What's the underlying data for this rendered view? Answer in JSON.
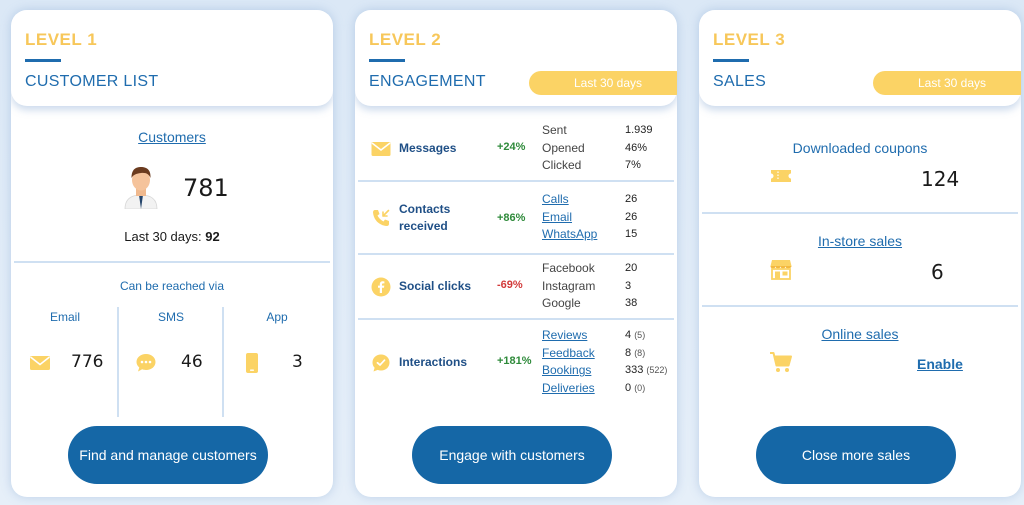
{
  "card1": {
    "level": "LEVEL 1",
    "title": "CUSTOMER LIST",
    "customers_link": "Customers",
    "customer_count": "781",
    "last_label": "Last 30 days:",
    "last_value": "92",
    "reach_label": "Can be reached via",
    "channels": [
      {
        "label": "Email",
        "icon": "envelope-icon",
        "value": "776"
      },
      {
        "label": "SMS",
        "icon": "chat-bubble-icon",
        "value": "46"
      },
      {
        "label": "App",
        "icon": "phone-icon",
        "value": "3"
      }
    ],
    "cta": "Find and manage customers"
  },
  "card2": {
    "level": "LEVEL 2",
    "title": "ENGAGEMENT",
    "period": "Last 30 days",
    "rows": [
      {
        "label": "Messages",
        "icon": "envelope-icon",
        "pct": "+24%",
        "metrics": [
          {
            "name": "Sent",
            "value": "1.939"
          },
          {
            "name": "Opened",
            "value": "46%"
          },
          {
            "name": "Clicked",
            "value": "7%"
          }
        ]
      },
      {
        "label": "Contacts received",
        "icon": "incoming-call-icon",
        "pct": "+86%",
        "metrics": [
          {
            "name": "Calls",
            "value": "26"
          },
          {
            "name": "Email",
            "value": "26"
          },
          {
            "name": "WhatsApp",
            "value": "15"
          }
        ]
      },
      {
        "label": "Social clicks",
        "icon": "facebook-icon",
        "pct": "-69%",
        "metrics": [
          {
            "name": "Facebook",
            "value": "20"
          },
          {
            "name": "Instagram",
            "value": "3"
          },
          {
            "name": "Google",
            "value": "38"
          }
        ]
      },
      {
        "label": "Interactions",
        "icon": "chat-dots-icon",
        "pct": "+181%",
        "metrics": [
          {
            "name": "Reviews",
            "value": "4",
            "extra": "(5)"
          },
          {
            "name": "Feedback",
            "value": "8",
            "extra": "(8)"
          },
          {
            "name": "Bookings",
            "value": "333",
            "extra": "(522)"
          },
          {
            "name": "Deliveries",
            "value": "0",
            "extra": "(0)"
          }
        ]
      }
    ],
    "cta": "Engage with customers"
  },
  "card3": {
    "level": "LEVEL 3",
    "title": "SALES",
    "period": "Last 30 days",
    "sections": [
      {
        "title": "Downloaded coupons",
        "icon": "ticket-icon",
        "value": "124"
      },
      {
        "title": "In-store sales",
        "icon": "store-icon",
        "value": "6"
      },
      {
        "title": "Online sales",
        "icon": "cart-icon",
        "value": "Enable"
      }
    ],
    "cta": "Close more sales"
  },
  "colors": {
    "accent_yellow": "#f7c75a",
    "primary_blue": "#1567a6",
    "positive": "#2e8a3a",
    "negative": "#d23a3a"
  }
}
